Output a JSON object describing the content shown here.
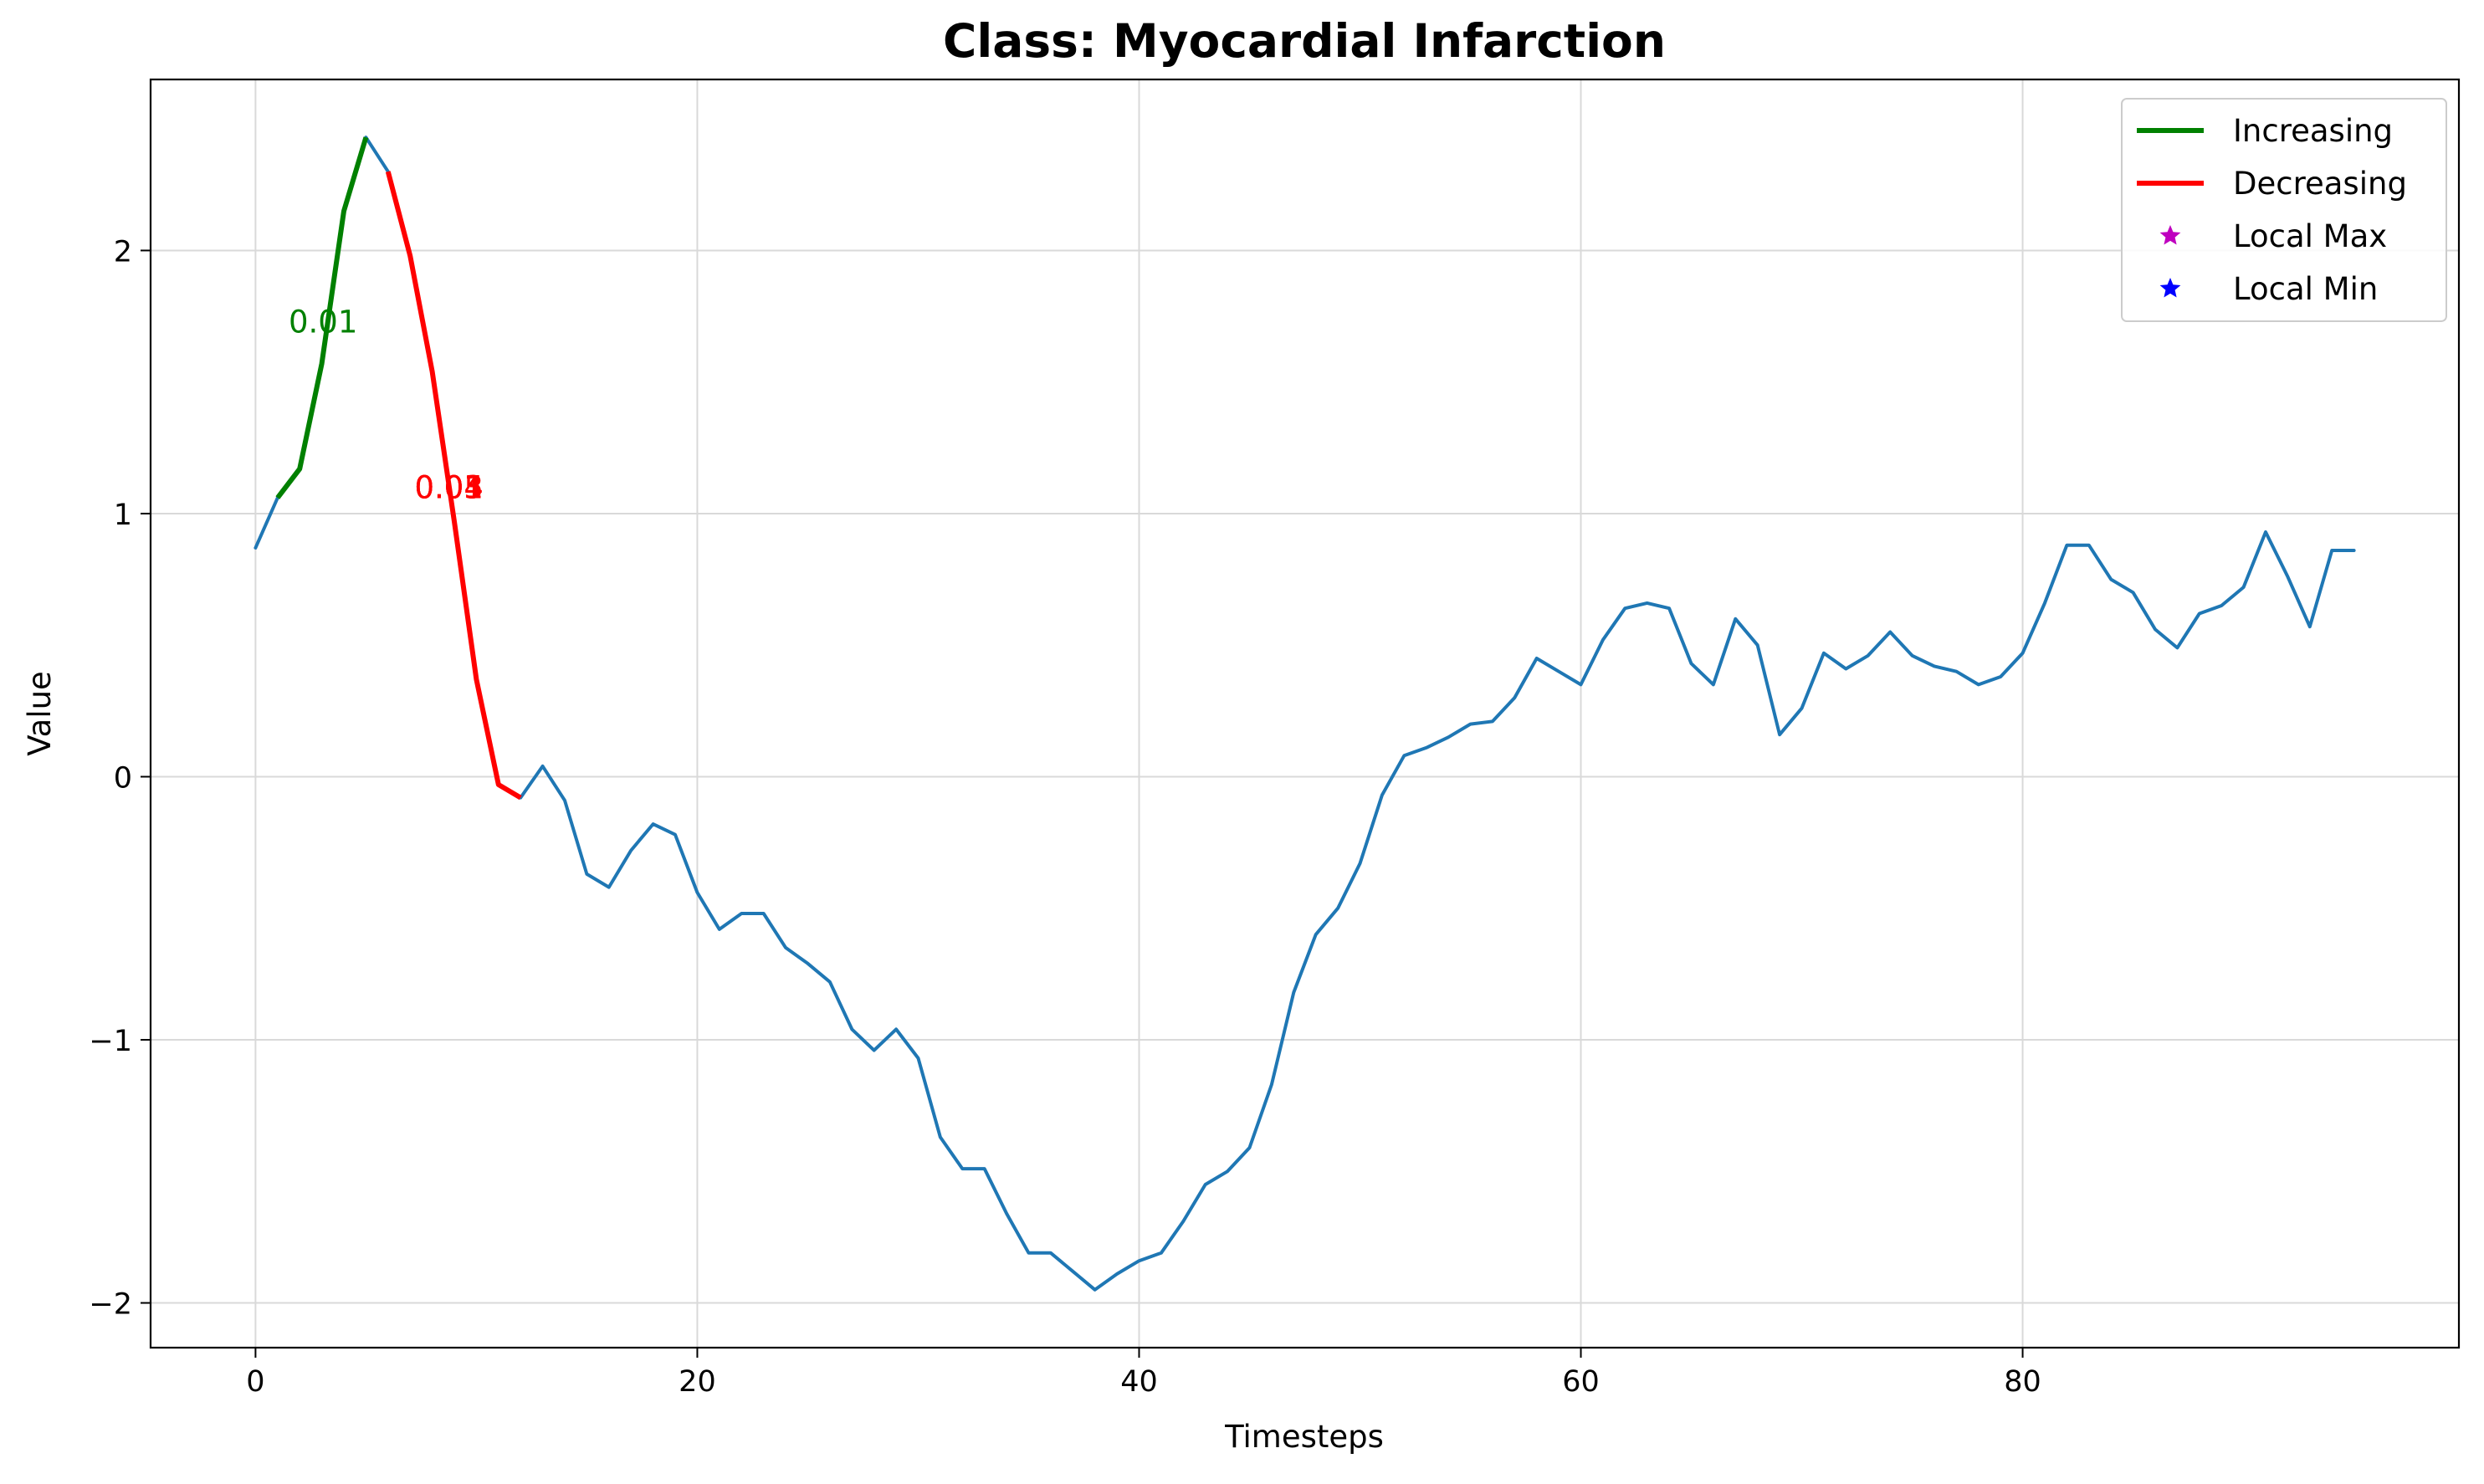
{
  "chart_data": {
    "type": "line",
    "title": "Class: Myocardial Infarction",
    "xlabel": "Timesteps",
    "ylabel": "Value",
    "xlim": [
      -4.75,
      99.75
    ],
    "ylim": [
      -2.17,
      2.65
    ],
    "xticks": [
      0,
      20,
      40,
      60,
      80
    ],
    "xtick_labels": [
      "0",
      "20",
      "40",
      "60",
      "80"
    ],
    "yticks": [
      -2,
      -1,
      0,
      1,
      2
    ],
    "ytick_labels": [
      "−2",
      "−1",
      "0",
      "1",
      "2"
    ],
    "grid": true,
    "legend_position": "top-right",
    "colors": {
      "series": "#1f77b4",
      "increasing": "#008000",
      "decreasing": "#ff0000",
      "local_max": "#bf00bf",
      "local_min": "#0000ff",
      "grid": "#d9d9d9",
      "axes": "#000000"
    },
    "x": [
      0,
      1,
      2,
      3,
      4,
      5,
      6,
      7,
      8,
      9,
      10,
      11,
      12,
      13,
      14,
      15,
      16,
      17,
      18,
      19,
      20,
      21,
      22,
      23,
      24,
      25,
      26,
      27,
      28,
      29,
      30,
      31,
      32,
      33,
      34,
      35,
      36,
      37,
      38,
      39,
      40,
      41,
      42,
      43,
      44,
      45,
      46,
      47,
      48,
      49,
      50,
      51,
      52,
      53,
      54,
      55,
      56,
      57,
      58,
      59,
      60,
      61,
      62,
      63,
      64,
      65,
      66,
      67,
      68,
      69,
      70,
      71,
      72,
      73,
      74,
      75,
      76,
      77,
      78,
      79,
      80,
      81,
      82,
      83,
      84,
      85,
      86,
      87,
      88,
      89,
      90,
      91,
      92,
      93,
      94,
      95
    ],
    "series": [
      {
        "values": [
          0.87,
          1.06,
          1.17,
          1.57,
          2.15,
          2.43,
          2.3,
          1.98,
          1.54,
          0.97,
          0.37,
          -0.03,
          -0.08,
          0.04,
          -0.09,
          -0.37,
          -0.42,
          -0.28,
          -0.18,
          -0.22,
          -0.44,
          -0.58,
          -0.52,
          -0.52,
          -0.65,
          -0.71,
          -0.78,
          -0.96,
          -1.04,
          -0.96,
          -1.07,
          -1.37,
          -1.49,
          -1.49,
          -1.66,
          -1.81,
          -1.81,
          -1.88,
          -1.95,
          -1.89,
          -1.84,
          -1.81,
          -1.69,
          -1.55,
          -1.5,
          -1.41,
          -1.17,
          -0.82,
          -0.6,
          -0.5,
          -0.33,
          -0.07,
          0.08,
          0.11,
          0.15,
          0.2,
          0.21,
          0.3,
          0.45,
          0.4,
          0.35,
          0.52,
          0.64,
          0.66,
          0.64,
          0.43,
          0.35,
          0.6,
          0.5,
          0.16,
          0.26,
          0.47,
          0.41,
          0.46,
          0.55,
          0.46,
          0.42,
          0.4,
          0.35,
          0.38,
          0.47,
          0.66,
          0.88,
          0.88,
          0.75,
          0.7,
          0.56,
          0.49,
          0.62,
          0.65,
          0.72,
          0.93,
          0.76,
          0.57,
          0.86,
          0.86
        ]
      }
    ],
    "segments": [
      {
        "kind": "increasing",
        "x_start": 1,
        "x_end": 5
      },
      {
        "kind": "decreasing",
        "x_start": 6,
        "x_end": 12
      }
    ],
    "annotations": [
      {
        "text": "0.01",
        "x": 1.5,
        "y": 1.73,
        "color": "#008000"
      },
      {
        "text": "0.04",
        "x": 7.2,
        "y": 1.1,
        "color": "#ff0000"
      },
      {
        "text": "0.01",
        "x": 7.2,
        "y": 1.1,
        "color": "#ff0000"
      },
      {
        "text": "0.05",
        "x": 7.2,
        "y": 1.1,
        "color": "#ff0000"
      },
      {
        "text": "0.03",
        "x": 7.2,
        "y": 1.1,
        "color": "#ff0000"
      }
    ],
    "legend": [
      {
        "label": "Increasing",
        "kind": "line",
        "color": "#008000"
      },
      {
        "label": "Decreasing",
        "kind": "line",
        "color": "#ff0000"
      },
      {
        "label": "Local Max",
        "kind": "star",
        "color": "#bf00bf"
      },
      {
        "label": "Local Min",
        "kind": "star",
        "color": "#0000ff"
      }
    ]
  }
}
